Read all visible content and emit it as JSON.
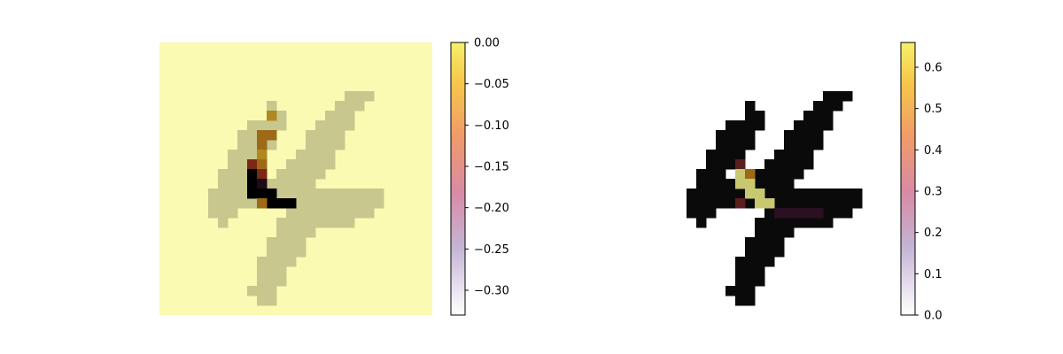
{
  "chart_data": [
    {
      "type": "heatmap",
      "description_note": "",
      "grid": false,
      "axes_visible": false,
      "colormap": "inferno (reversed, semi-transparent overlay on grayscale digit)",
      "colorbar": {
        "position": "right",
        "range": [
          -0.33,
          0.0
        ],
        "ticks": [
          "0.00",
          "−0.05",
          "−0.10",
          "−0.15",
          "−0.20",
          "−0.25",
          "−0.30"
        ]
      },
      "background_color": "#fafab2",
      "stroke_color": "#c8c88e",
      "strong_cell_colors": [
        "#000000",
        "#1e0a14",
        "#7a2a14",
        "#9e6a18",
        "#b08820"
      ]
    },
    {
      "type": "heatmap",
      "grid": false,
      "axes_visible": false,
      "colormap": "inferno (semi-transparent overlay on grayscale digit)",
      "colorbar": {
        "position": "right",
        "range": [
          0.0,
          0.66
        ],
        "ticks": [
          "0.0",
          "0.1",
          "0.2",
          "0.3",
          "0.4",
          "0.5",
          "0.6"
        ]
      },
      "background_color": "#ffffff",
      "stroke_color": "#0a0a0a",
      "strong_cell_colors": [
        "#c8c870",
        "#9e6a18",
        "#5a1e1e",
        "#2a1020"
      ]
    }
  ]
}
